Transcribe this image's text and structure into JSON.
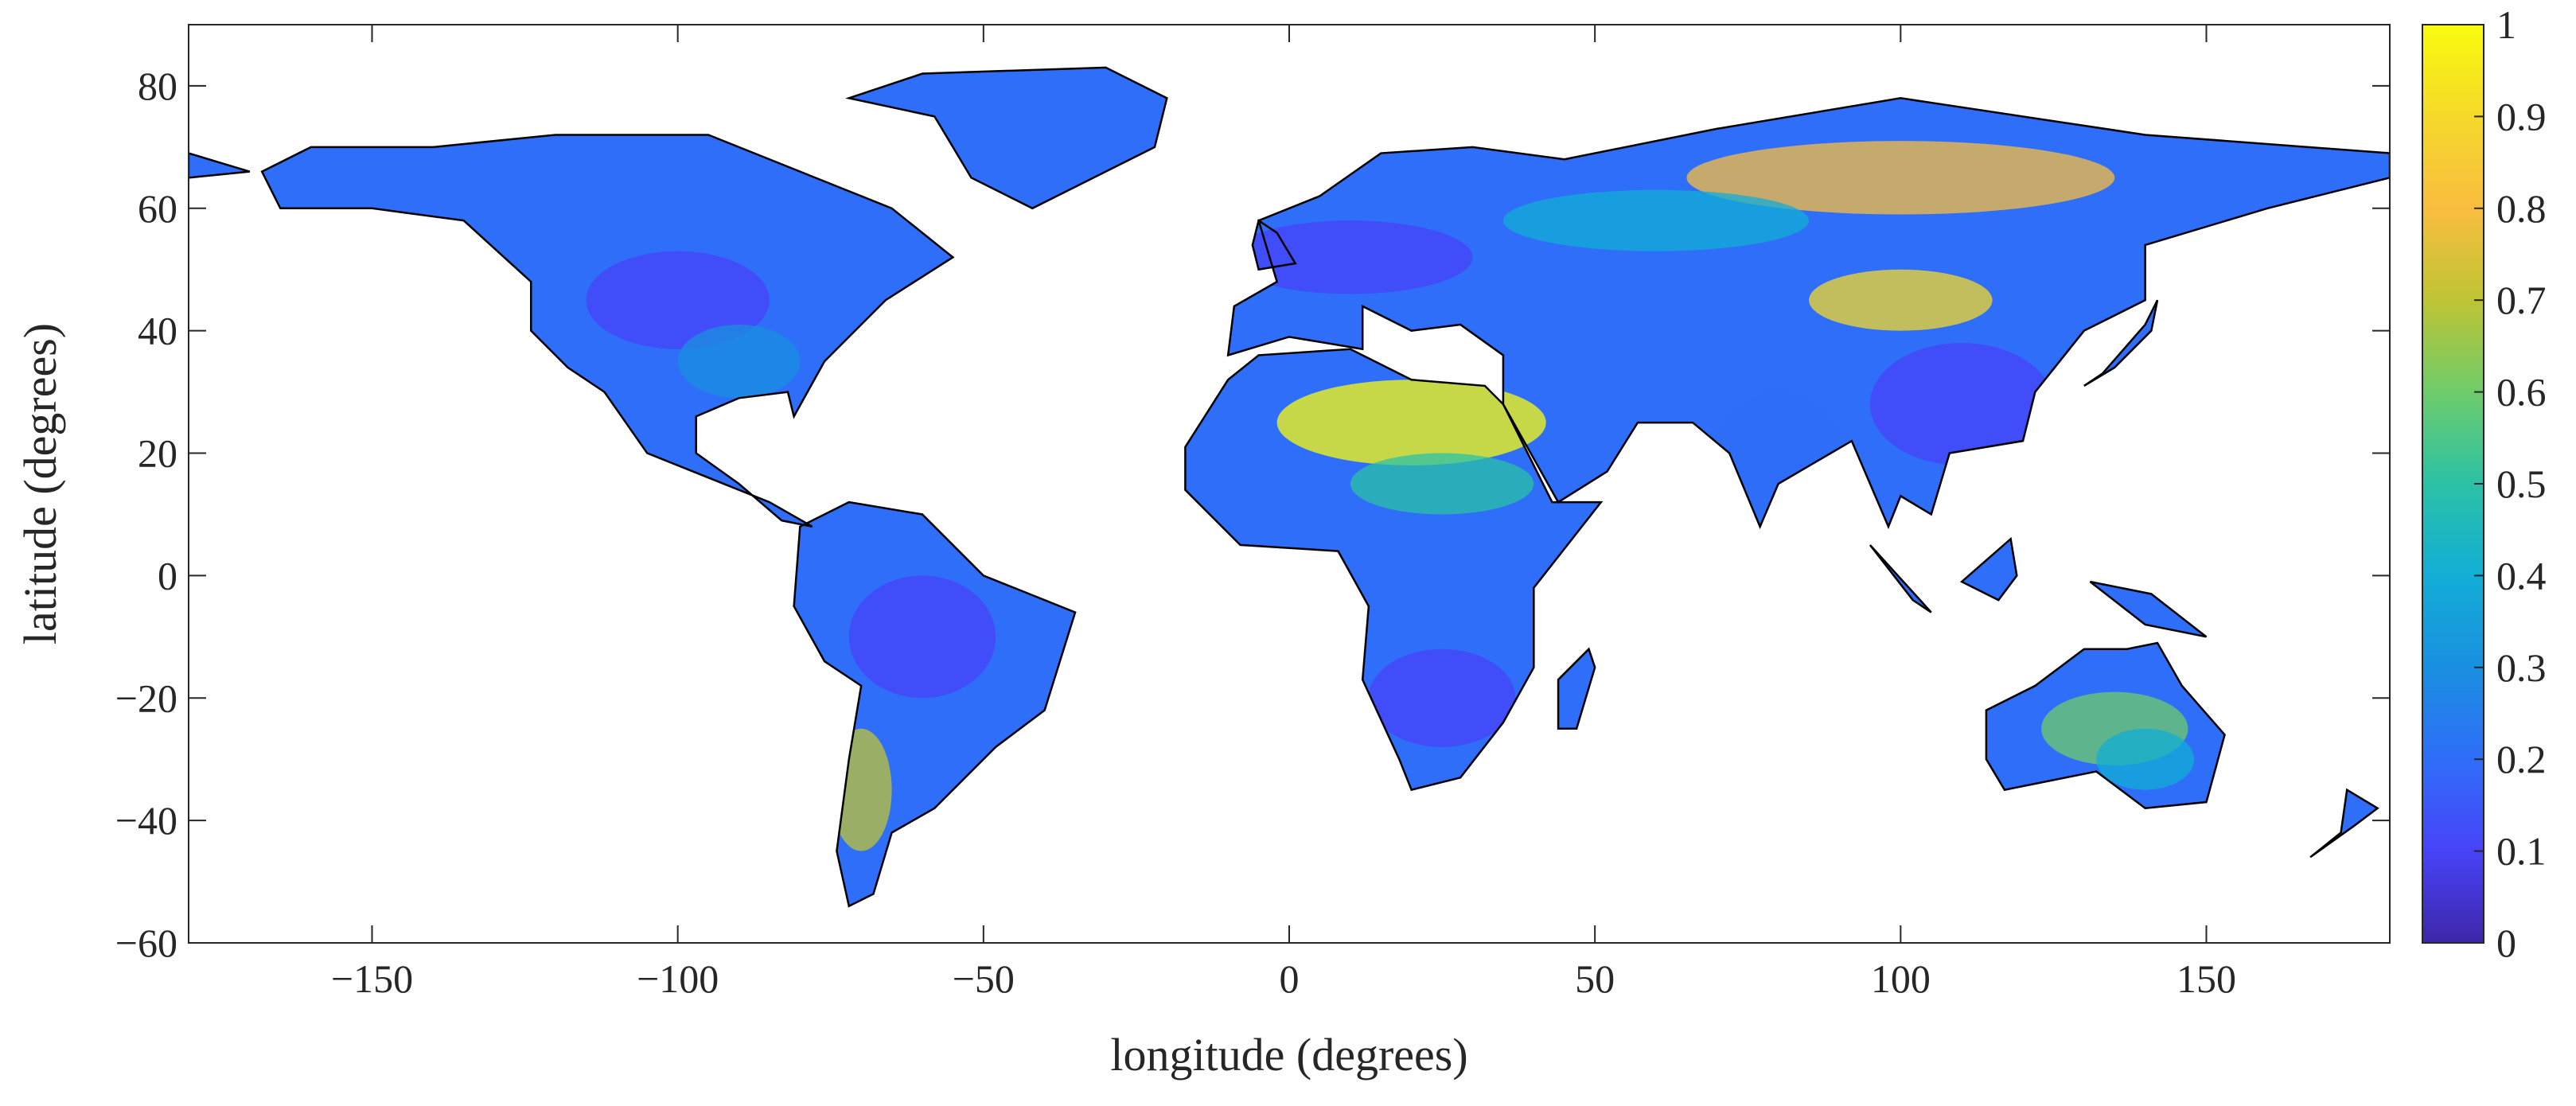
{
  "chart_data": {
    "type": "map",
    "x_label": "longitude (degrees)",
    "y_label": "latitude (degrees)",
    "xlim": [
      -180,
      180
    ],
    "ylim": [
      -60,
      90
    ],
    "xticks": [
      {
        "value": -150,
        "label": "−150"
      },
      {
        "value": -100,
        "label": "−100"
      },
      {
        "value": -50,
        "label": "−50"
      },
      0,
      50,
      100,
      150
    ],
    "yticks": [
      {
        "value": -60,
        "label": "−60"
      },
      {
        "value": -40,
        "label": "−40"
      },
      {
        "value": -20,
        "label": "−20"
      },
      0,
      20,
      40,
      60,
      80
    ],
    "colorbar": {
      "clim": [
        0,
        1
      ],
      "ticks": [
        0,
        0.1,
        0.2,
        0.3,
        0.4,
        0.5,
        0.6,
        0.7,
        0.8,
        0.9,
        1
      ],
      "colors": [
        "#3e26a8",
        "#4743f8",
        "#2f6ef8",
        "#1a8fe0",
        "#12aed6",
        "#2bc1a6",
        "#6ecc6a",
        "#bfc434",
        "#f9bd3f",
        "#f5d92a",
        "#f9fb0e"
      ]
    }
  }
}
